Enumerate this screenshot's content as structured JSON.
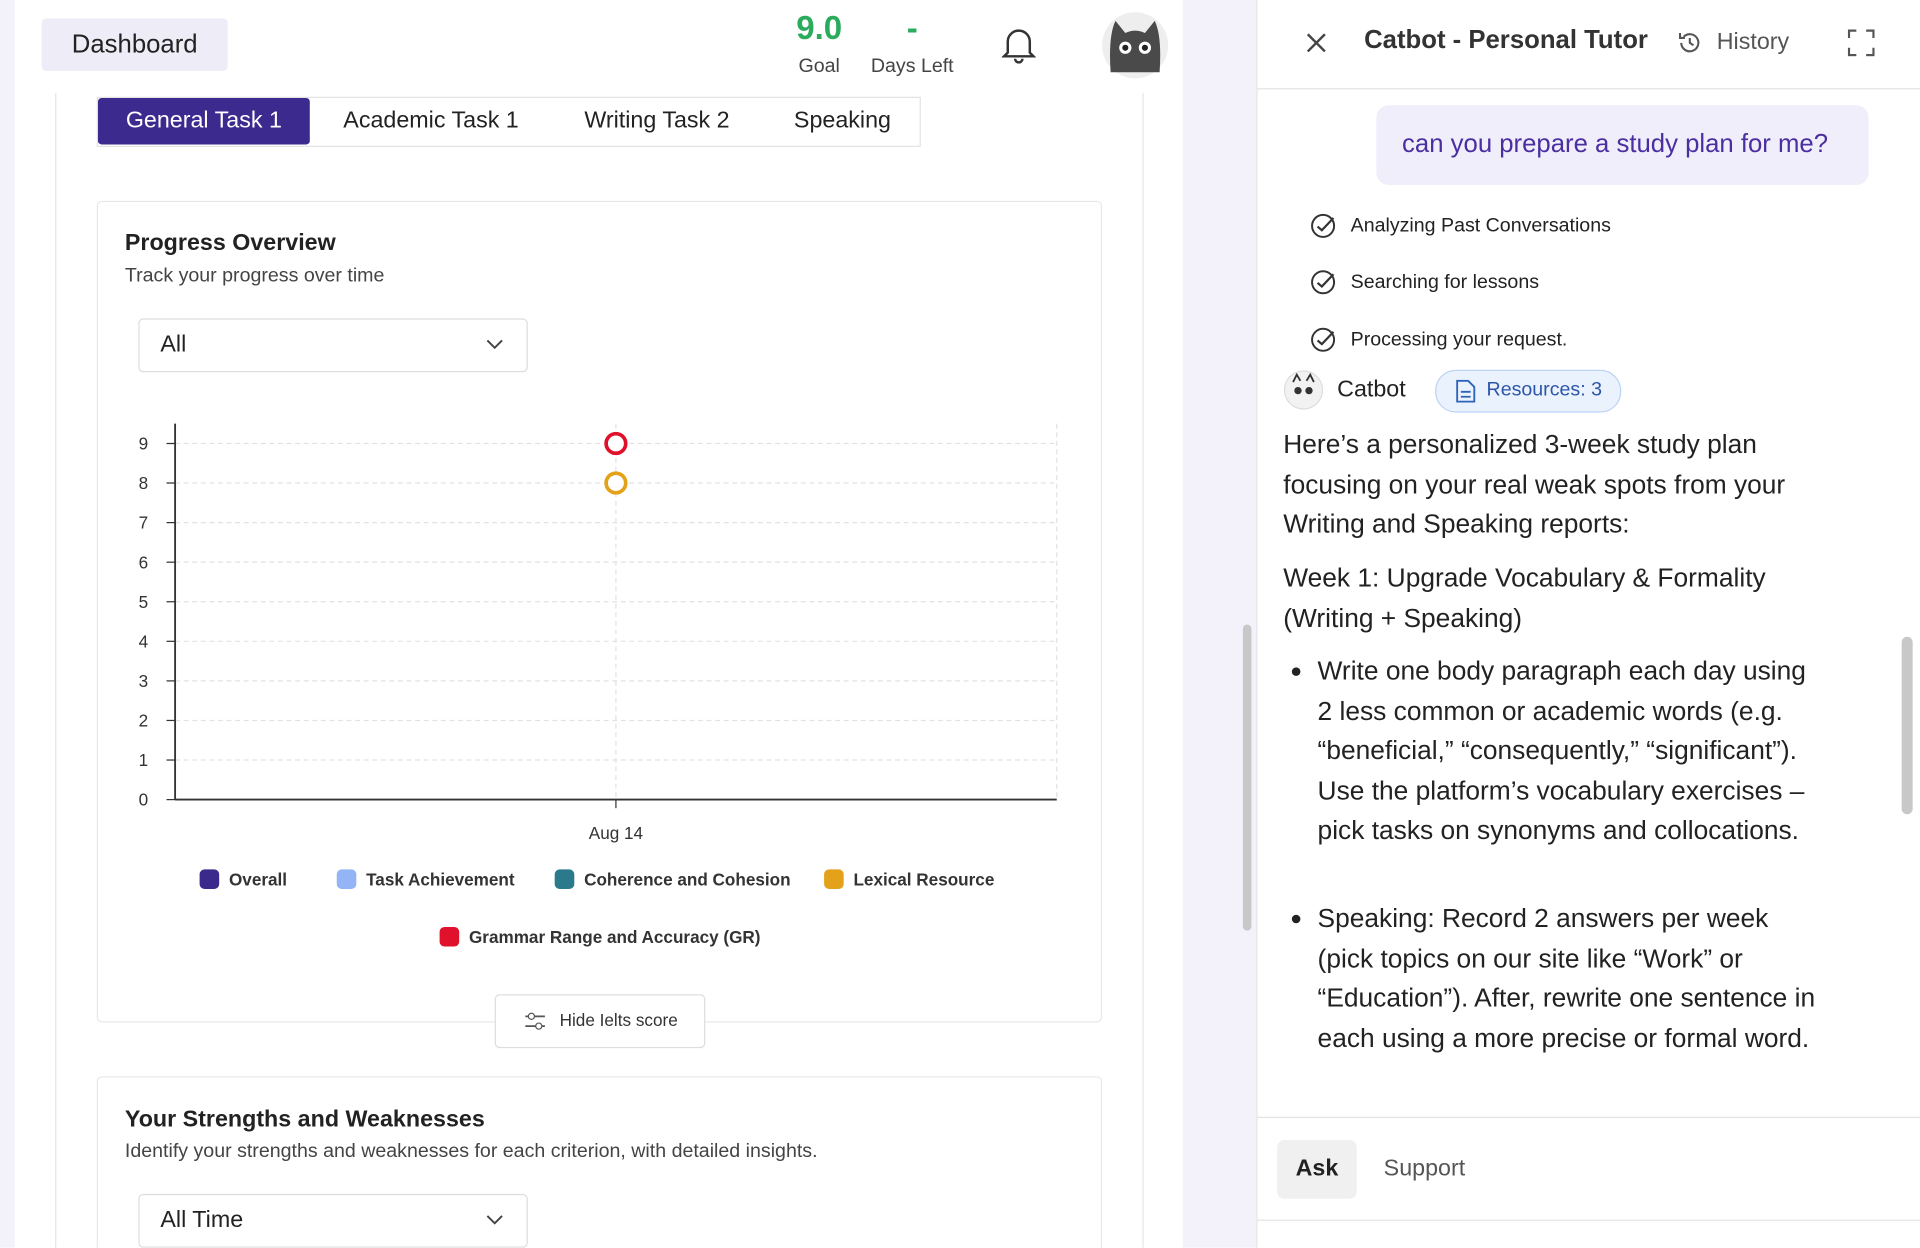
{
  "header": {
    "title": "Dashboard",
    "goal_value": "9.0",
    "goal_label": "Goal",
    "days_value": "-",
    "days_label": "Days Left"
  },
  "tabs": [
    "General Task 1",
    "Academic Task 1",
    "Writing Task 2",
    "Speaking"
  ],
  "progress": {
    "title": "Progress Overview",
    "subtitle": "Track your progress over time",
    "filter": "All",
    "hide_button": "Hide Ielts score"
  },
  "chart_data": {
    "type": "scatter",
    "categories": [
      "Aug 14"
    ],
    "ylim": [
      0,
      9.5
    ],
    "yticks": [
      0,
      1,
      2,
      3,
      4,
      5,
      6,
      7,
      8,
      9
    ],
    "grid": true,
    "legend": "bottom",
    "series": [
      {
        "name": "Overall",
        "color": "#3b2a8c",
        "values": [
          null
        ]
      },
      {
        "name": "Task Achievement",
        "color": "#93b4f5",
        "values": [
          null
        ]
      },
      {
        "name": "Coherence and Cohesion",
        "color": "#2a7a8c",
        "values": [
          null
        ]
      },
      {
        "name": "Lexical Resource",
        "color": "#e3a21a",
        "values": [
          8
        ]
      },
      {
        "name": "Grammar Range and Accuracy (GR)",
        "color": "#e0112b",
        "values": [
          9
        ]
      }
    ]
  },
  "strengths": {
    "title": "Your Strengths and Weaknesses",
    "subtitle": "Identify your strengths and weaknesses for each criterion, with detailed insights.",
    "filter": "All Time"
  },
  "chat": {
    "title": "Catbot - Personal Tutor",
    "history": "History",
    "user_message": "can you prepare a study plan for me?",
    "steps": [
      "Analyzing Past Conversations",
      "Searching for lessons",
      "Processing your request."
    ],
    "bot_name": "Catbot",
    "resources": "Resources: 3",
    "intro": "Here’s a personalized 3-week study plan focusing on your real weak spots from your Writing and Speaking reports:",
    "week_heading": "Week 1: Upgrade Vocabulary & Formality (Writing + Speaking)",
    "bullets": [
      "Write one body paragraph each day using 2 less common or academic words (e.g. “beneficial,” “consequently,” “significant”). Use the platform’s vocabulary exercises – pick tasks on synonyms and collocations.",
      "Speaking: Record 2 answers per week (pick topics on our site like “Work” or “Education”). After, rewrite one sentence in each using a more precise or formal word."
    ],
    "tabs": [
      "Ask",
      "Support"
    ]
  }
}
